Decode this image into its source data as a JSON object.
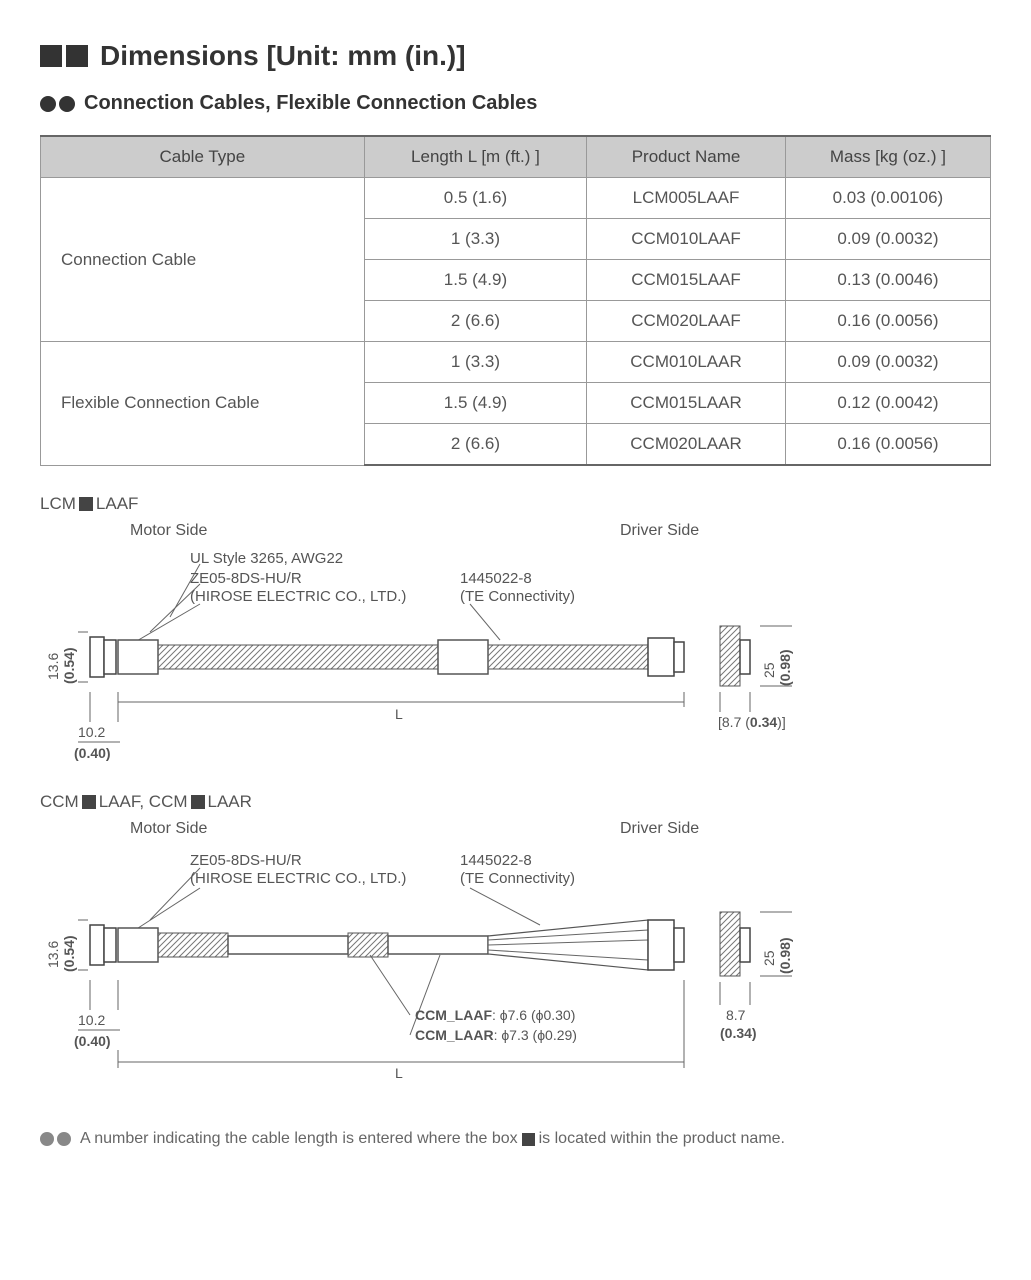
{
  "title": "Dimensions [Unit: mm (in.)]",
  "subtitle": "Connection Cables, Flexible Connection Cables",
  "table": {
    "headers": [
      "Cable Type",
      "Length  L [m (ft.) ]",
      "Product Name",
      "Mass  [kg (oz.) ]"
    ],
    "groups": [
      {
        "type": "Connection Cable",
        "rows": [
          [
            "0.5 (1.6)",
            "LCM005LAAF",
            "0.03 (0.00106)"
          ],
          [
            "1 (3.3)",
            "CCM010LAAF",
            "0.09 (0.0032)"
          ],
          [
            "1.5 (4.9)",
            "CCM015LAAF",
            "0.13 (0.0046)"
          ],
          [
            "2 (6.6)",
            "CCM020LAAF",
            "0.16 (0.0056)"
          ]
        ]
      },
      {
        "type": "Flexible Connection Cable",
        "rows": [
          [
            "1 (3.3)",
            "CCM010LAAR",
            "0.09 (0.0032)"
          ],
          [
            "1.5 (4.9)",
            "CCM015LAAR",
            "0.12  (0.0042)"
          ],
          [
            "2 (6.6)",
            "CCM020LAAR",
            "0.16 (0.0056)"
          ]
        ]
      }
    ]
  },
  "diagram1": {
    "label_pre": "LCM",
    "label_post": "LAAF",
    "motor_side": "Motor Side",
    "driver_side": "Driver Side",
    "callout1": "UL Style 3265, AWG22",
    "callout2": "ZE05-8DS-HU/R",
    "callout2b": "(HIROSE ELECTRIC CO., LTD.)",
    "callout3": "1445022-8",
    "callout3b": "(TE Connectivity)",
    "dim_h1": "13.6",
    "dim_h1b": "(0.54)",
    "dim_w1": "10.2",
    "dim_w1b": "(0.40)",
    "dim_L": "L",
    "dim_h2": "25",
    "dim_h2b": "(0.98)",
    "dim_w2": "[8.7 (0.34)]"
  },
  "diagram2": {
    "label_pre1": "CCM",
    "label_mid1": "LAAF, CCM",
    "label_post": "LAAR",
    "motor_side": "Motor Side",
    "driver_side": "Driver Side",
    "callout2": "ZE05-8DS-HU/R",
    "callout2b": "(HIROSE ELECTRIC CO., LTD.)",
    "callout3": "1445022-8",
    "callout3b": "(TE Connectivity)",
    "dim_h1": "13.6",
    "dim_h1b": "(0.54)",
    "dim_w1": "10.2",
    "dim_w1b": "(0.40)",
    "dim_L": "L",
    "dia1_label": "CCM_LAAF",
    "dia1": ": ϕ7.6 (ϕ0.30)",
    "dia2_label": "CCM_LAAR",
    "dia2": ": ϕ7.3 (ϕ0.29)",
    "dim_h2": "25",
    "dim_h2b": "(0.98)",
    "dim_w2a": "8.7",
    "dim_w2b": "(0.34)"
  },
  "footnote_pre": "A number indicating the cable length is entered where the box ",
  "footnote_post": " is located within the product name.",
  "colors": {
    "text": "#555555",
    "line": "#666666",
    "header_bg": "#cccccc",
    "border": "#999999",
    "black": "#333333"
  }
}
